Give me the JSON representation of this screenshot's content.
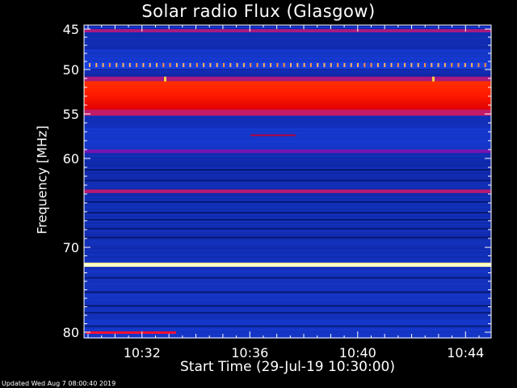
{
  "chart_data": {
    "type": "heatmap",
    "title": "Solar radio Flux (Glasgow)",
    "xlabel": "Start Time (29-Jul-19 10:30:00)",
    "ylabel": "Frequency [MHz]",
    "x_range_minutes": [
      10.5,
      10.745
    ],
    "x_ticks": [
      {
        "value": 32,
        "label": "10:32"
      },
      {
        "value": 36,
        "label": "10:36"
      },
      {
        "value": 40,
        "label": "10:40"
      },
      {
        "value": 44,
        "label": "10:44"
      }
    ],
    "y_range_mhz": [
      45,
      80.3
    ],
    "y_ticks": [
      45,
      50,
      55,
      60,
      70,
      80
    ],
    "colormap": [
      "#000060",
      "#0010c0",
      "#2040ff",
      "#ff2000",
      "#ffff90"
    ],
    "bands": [
      {
        "f0": 45.0,
        "f1": 45.4,
        "level": 0.55
      },
      {
        "f0": 45.4,
        "f1": 47.5,
        "level": 0.22
      },
      {
        "f0": 47.5,
        "f1": 49.0,
        "level": 0.3
      },
      {
        "f0": 49.0,
        "f1": 49.9,
        "level": 0.35
      },
      {
        "f0": 49.9,
        "f1": 50.8,
        "level": 0.2
      },
      {
        "f0": 50.8,
        "f1": 51.3,
        "level": 0.55
      },
      {
        "f0": 51.3,
        "f1": 54.5,
        "level": 0.72
      },
      {
        "f0": 54.5,
        "f1": 55.2,
        "level": 0.6
      },
      {
        "f0": 55.2,
        "f1": 56.5,
        "level": 0.25
      },
      {
        "f0": 56.5,
        "f1": 59.0,
        "level": 0.3
      },
      {
        "f0": 59.0,
        "f1": 59.4,
        "level": 0.45
      },
      {
        "f0": 59.4,
        "f1": 63.5,
        "level": 0.22
      },
      {
        "f0": 63.5,
        "f1": 63.9,
        "level": 0.58
      },
      {
        "f0": 63.9,
        "f1": 71.8,
        "level": 0.24
      },
      {
        "f0": 71.8,
        "f1": 72.3,
        "level": 0.97
      },
      {
        "f0": 72.3,
        "f1": 78.5,
        "level": 0.26
      },
      {
        "f0": 78.5,
        "f1": 80.3,
        "level": 0.3
      }
    ],
    "updated": "Updated Wed Aug  7 08:00:40 2019"
  }
}
